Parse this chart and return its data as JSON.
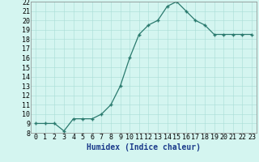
{
  "xlabel": "Humidex (Indice chaleur)",
  "x_values": [
    0,
    1,
    2,
    3,
    4,
    5,
    6,
    7,
    8,
    9,
    10,
    11,
    12,
    13,
    14,
    15,
    16,
    17,
    18,
    19,
    20,
    21,
    22,
    23
  ],
  "y_values": [
    9.0,
    9.0,
    9.0,
    8.2,
    9.5,
    9.5,
    9.5,
    10.0,
    11.0,
    13.0,
    16.0,
    18.5,
    19.5,
    20.0,
    21.5,
    22.0,
    21.0,
    20.0,
    19.5,
    18.5,
    18.5,
    18.5,
    18.5,
    18.5
  ],
  "ylim": [
    8,
    22
  ],
  "xlim": [
    -0.5,
    23.5
  ],
  "yticks": [
    8,
    9,
    10,
    11,
    12,
    13,
    14,
    15,
    16,
    17,
    18,
    19,
    20,
    21,
    22
  ],
  "xticks": [
    0,
    1,
    2,
    3,
    4,
    5,
    6,
    7,
    8,
    9,
    10,
    11,
    12,
    13,
    14,
    15,
    16,
    17,
    18,
    19,
    20,
    21,
    22,
    23
  ],
  "line_color": "#2a7a6e",
  "bg_color": "#d4f5f0",
  "grid_color": "#a8ddd6",
  "tick_fontsize": 6,
  "label_fontsize": 7,
  "xlabel_color": "#1a3a8a"
}
